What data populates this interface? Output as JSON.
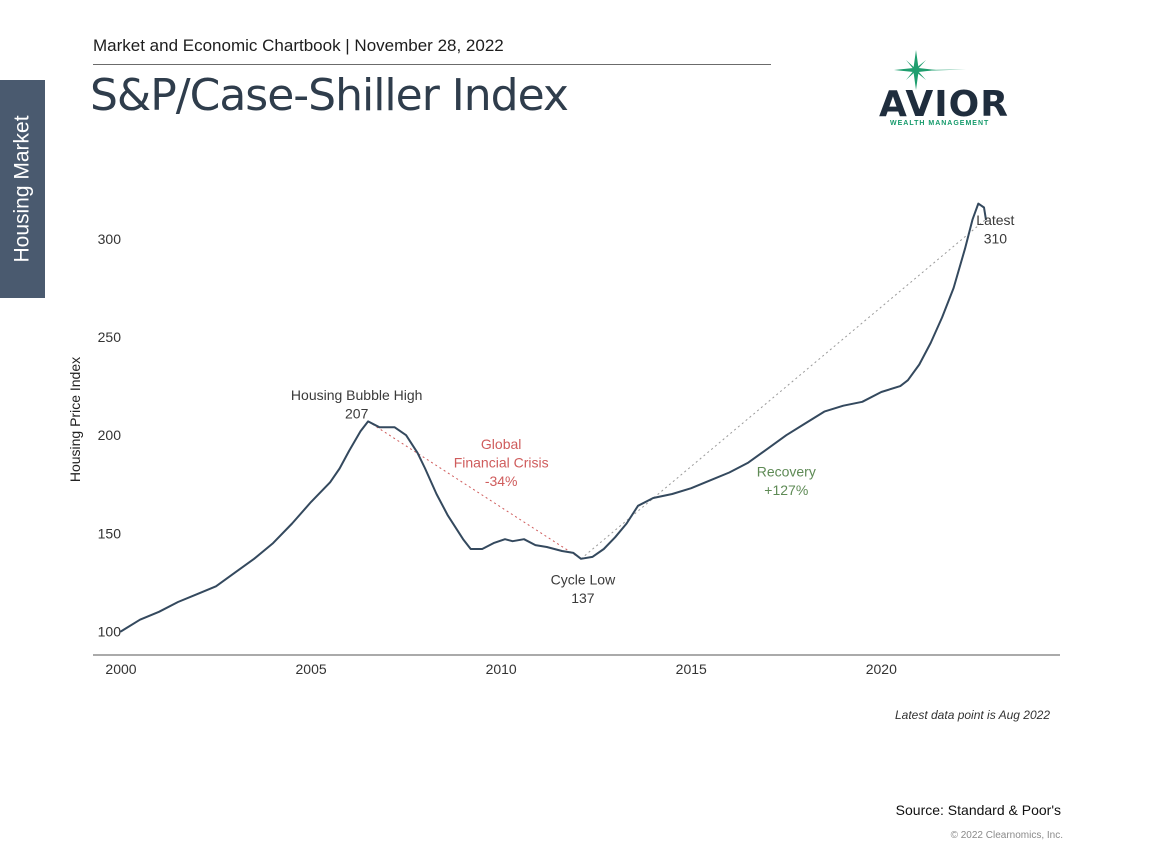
{
  "side_tab": {
    "label": "Housing Market"
  },
  "header": {
    "line": "Market and Economic Chartbook | November 28, 2022",
    "title": "S&P/Case-Shiller Index"
  },
  "logo": {
    "name": "AVIOR",
    "subtitle": "WEALTH MANAGEMENT",
    "accent": "#1e9e6e"
  },
  "footnote": "Latest data point is Aug 2022",
  "source": "Source: Standard & Poor's",
  "copyright": "© 2022 Clearnomics, Inc.",
  "chart_data": {
    "type": "line",
    "title": "",
    "ylabel": "Housing Price Index",
    "xlabel": "",
    "xlim": [
      2000,
      2024.7
    ],
    "ylim": [
      88,
      330
    ],
    "x_ticks": [
      "2000",
      "2005",
      "2010",
      "2015",
      "2020"
    ],
    "y_ticks": [
      "100",
      "150",
      "200",
      "250",
      "300"
    ],
    "grid": false,
    "colors": {
      "line": "#34495e",
      "crisis": "#cf5c5c",
      "recovery": "#5e8a55",
      "trend": "#9a9a9a"
    },
    "series": [
      {
        "values": [
          [
            2000.0,
            100
          ],
          [
            2000.5,
            106
          ],
          [
            2001.0,
            110
          ],
          [
            2001.5,
            115
          ],
          [
            2002.0,
            119
          ],
          [
            2002.5,
            123
          ],
          [
            2003.0,
            130
          ],
          [
            2003.5,
            137
          ],
          [
            2004.0,
            145
          ],
          [
            2004.5,
            155
          ],
          [
            2005.0,
            166
          ],
          [
            2005.5,
            176
          ],
          [
            2005.75,
            183
          ],
          [
            2006.0,
            192
          ],
          [
            2006.3,
            202
          ],
          [
            2006.5,
            207
          ],
          [
            2006.8,
            204
          ],
          [
            2007.2,
            204
          ],
          [
            2007.5,
            200
          ],
          [
            2007.8,
            191
          ],
          [
            2008.0,
            183
          ],
          [
            2008.3,
            170
          ],
          [
            2008.6,
            159
          ],
          [
            2009.0,
            147
          ],
          [
            2009.2,
            142
          ],
          [
            2009.5,
            142
          ],
          [
            2009.8,
            145
          ],
          [
            2010.1,
            147
          ],
          [
            2010.3,
            146
          ],
          [
            2010.6,
            147
          ],
          [
            2010.9,
            144
          ],
          [
            2011.2,
            143
          ],
          [
            2011.6,
            141
          ],
          [
            2011.9,
            140
          ],
          [
            2012.1,
            137
          ],
          [
            2012.4,
            138
          ],
          [
            2012.7,
            142
          ],
          [
            2013.0,
            148
          ],
          [
            2013.3,
            155
          ],
          [
            2013.6,
            164
          ],
          [
            2014.0,
            168
          ],
          [
            2014.5,
            170
          ],
          [
            2015.0,
            173
          ],
          [
            2015.5,
            177
          ],
          [
            2016.0,
            181
          ],
          [
            2016.5,
            186
          ],
          [
            2017.0,
            193
          ],
          [
            2017.5,
            200
          ],
          [
            2018.0,
            206
          ],
          [
            2018.5,
            212
          ],
          [
            2019.0,
            215
          ],
          [
            2019.5,
            217
          ],
          [
            2020.0,
            222
          ],
          [
            2020.5,
            225
          ],
          [
            2020.7,
            228
          ],
          [
            2021.0,
            236
          ],
          [
            2021.3,
            247
          ],
          [
            2021.6,
            260
          ],
          [
            2021.9,
            275
          ],
          [
            2022.2,
            295
          ],
          [
            2022.4,
            310
          ],
          [
            2022.55,
            318
          ],
          [
            2022.7,
            316
          ],
          [
            2022.75,
            310
          ]
        ]
      }
    ],
    "annotations": [
      {
        "id": "peak",
        "lines": [
          "Housing Bubble High",
          "207"
        ],
        "x": 2006.2,
        "y": 218,
        "color": "#3a3a3a"
      },
      {
        "id": "crisis",
        "lines": [
          "Global",
          "Financial Crisis",
          "-34%"
        ],
        "x": 2010.0,
        "y": 193,
        "color": "#cf5c5c"
      },
      {
        "id": "low",
        "lines": [
          "Cycle Low",
          "137"
        ],
        "x": 2012.15,
        "y": 124,
        "color": "#3a3a3a"
      },
      {
        "id": "recovery",
        "lines": [
          "Recovery",
          "+127%"
        ],
        "x": 2017.5,
        "y": 179,
        "color": "#5e8a55"
      },
      {
        "id": "latest",
        "lines": [
          "Latest",
          "310"
        ],
        "x": 2023.0,
        "y": 307,
        "color": "#3a3a3a"
      }
    ],
    "trend_lines": [
      {
        "id": "crisis-trend",
        "from": [
          2006.5,
          207
        ],
        "to": [
          2012.1,
          137
        ],
        "color": "#cf5c5c"
      },
      {
        "id": "recovery-trend",
        "from": [
          2012.1,
          137
        ],
        "to": [
          2022.75,
          310
        ],
        "color": "#9a9a9a"
      }
    ]
  }
}
